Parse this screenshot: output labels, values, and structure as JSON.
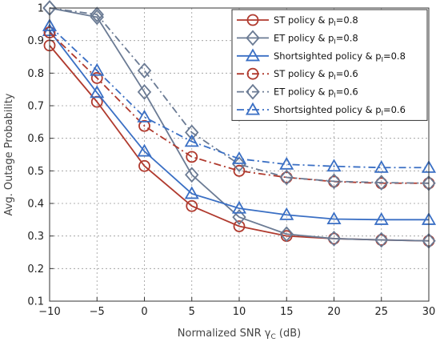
{
  "chart_data": {
    "type": "line",
    "xlabel": "Normalized SNR γ",
    "xlabel_sub": "C",
    "xlabel_unit": " (dB)",
    "ylabel": "Avg. Outage Probability",
    "xlim": [
      -10,
      30
    ],
    "ylim": [
      0.1,
      1.0
    ],
    "grid": true,
    "legend_position": "top-right",
    "x": [
      -10,
      -5,
      0,
      5,
      10,
      15,
      20,
      25,
      30
    ],
    "x_tick_labels": [
      "−10",
      "−5",
      "0",
      "5",
      "10",
      "15",
      "20",
      "25",
      "30"
    ],
    "y_ticks": [
      0.1,
      0.2,
      0.3,
      0.4,
      0.5,
      0.6,
      0.7,
      0.8,
      0.9,
      1.0
    ],
    "y_tick_labels": [
      "0.1",
      "0.2",
      "0.3",
      "0.4",
      "0.5",
      "0.6",
      "0.7",
      "0.8",
      "0.9",
      "1"
    ],
    "series": [
      {
        "name": "ST policy & p",
        "sub": "I",
        "suffix": "=0.8",
        "color": "#b03a2e",
        "dash": "solid",
        "marker": "circle",
        "values": [
          0.885,
          0.712,
          0.515,
          0.392,
          0.33,
          0.3,
          0.292,
          0.288,
          0.285
        ]
      },
      {
        "name": "ET policy & p",
        "sub": "I",
        "suffix": "=0.8",
        "color": "#6b7b94",
        "dash": "solid",
        "marker": "diamond",
        "values": [
          1.0,
          0.972,
          0.742,
          0.488,
          0.358,
          0.306,
          0.292,
          0.288,
          0.285
        ]
      },
      {
        "name": "Shortsighted policy & p",
        "sub": "I",
        "suffix": "=0.8",
        "color": "#3a6fc4",
        "dash": "solid",
        "marker": "triangle",
        "values": [
          0.93,
          0.74,
          0.56,
          0.43,
          0.385,
          0.365,
          0.352,
          0.35,
          0.35
        ]
      },
      {
        "name": "ST policy & p",
        "sub": "I",
        "suffix": "=0.6",
        "color": "#b03a2e",
        "dash": "dashdot",
        "marker": "circle",
        "values": [
          0.925,
          0.785,
          0.638,
          0.543,
          0.5,
          0.48,
          0.467,
          0.462,
          0.462
        ]
      },
      {
        "name": "ET policy & p",
        "sub": "I",
        "suffix": "=0.6",
        "color": "#6b7b94",
        "dash": "dashdot",
        "marker": "diamond",
        "values": [
          1.0,
          0.98,
          0.808,
          0.618,
          0.52,
          0.48,
          0.468,
          0.464,
          0.462
        ]
      },
      {
        "name": "Shortsighted policy & p",
        "sub": "I",
        "suffix": "=0.6",
        "color": "#3a6fc4",
        "dash": "dashdot",
        "marker": "triangle",
        "values": [
          0.945,
          0.808,
          0.665,
          0.59,
          0.537,
          0.52,
          0.514,
          0.51,
          0.51
        ]
      }
    ]
  }
}
